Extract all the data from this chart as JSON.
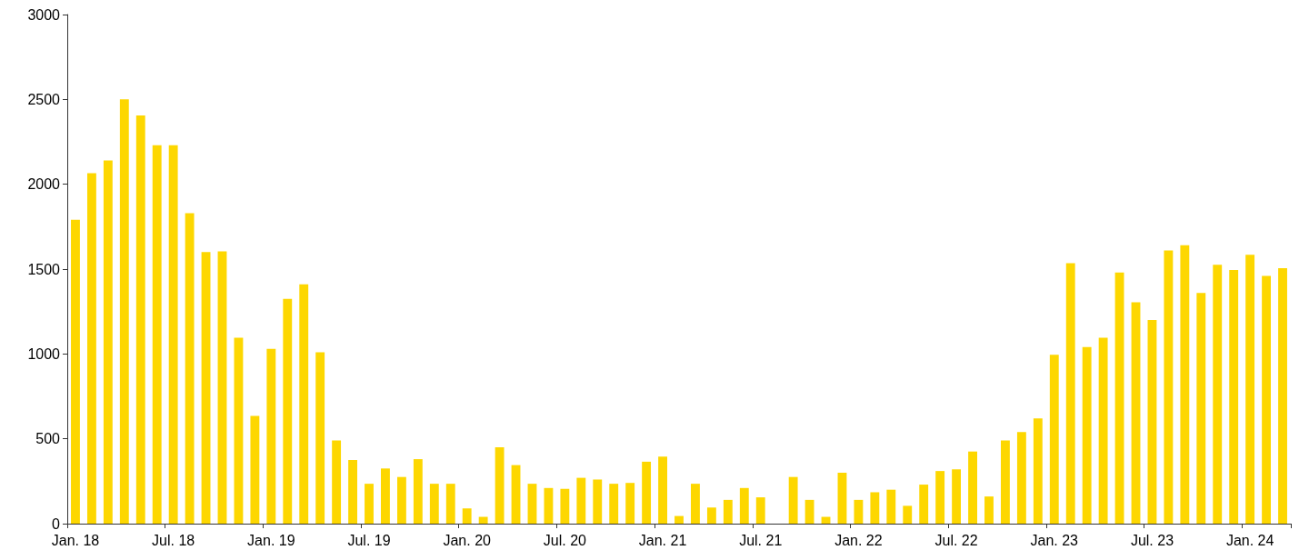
{
  "chart_data": {
    "type": "bar",
    "categories": [
      "Jan. 18",
      null,
      null,
      null,
      null,
      null,
      "Jul. 18",
      null,
      null,
      null,
      null,
      null,
      "Jan. 19",
      null,
      null,
      null,
      null,
      null,
      "Jul. 19",
      null,
      null,
      null,
      null,
      null,
      "Jan. 20",
      null,
      null,
      null,
      null,
      null,
      "Jul. 20",
      null,
      null,
      null,
      null,
      null,
      "Jan. 21",
      null,
      null,
      null,
      null,
      null,
      "Jul. 21",
      null,
      null,
      null,
      null,
      null,
      "Jan. 22",
      null,
      null,
      null,
      null,
      null,
      "Jul. 22",
      null,
      null,
      null,
      null,
      null,
      "Jan. 23",
      null,
      null,
      null,
      null,
      null,
      "Jul. 23",
      null,
      null,
      null,
      null,
      null,
      "Jan. 24",
      null,
      null
    ],
    "values": [
      1790,
      2065,
      2140,
      2500,
      2405,
      2230,
      2230,
      1830,
      1600,
      1605,
      1095,
      635,
      1030,
      1325,
      1410,
      1010,
      490,
      375,
      235,
      325,
      275,
      380,
      235,
      235,
      90,
      40,
      450,
      345,
      235,
      210,
      205,
      270,
      260,
      235,
      240,
      365,
      395,
      45,
      235,
      95,
      140,
      210,
      155,
      null,
      275,
      140,
      40,
      300,
      140,
      185,
      200,
      105,
      230,
      310,
      320,
      425,
      160,
      490,
      540,
      620,
      995,
      1535,
      1040,
      1095,
      1480,
      1305,
      1200,
      1610,
      1640,
      1360,
      1525,
      1495,
      1585,
      1460,
      1505
    ],
    "color": "#fdd700",
    "ylim": [
      0,
      3000
    ],
    "yticks": [
      0,
      500,
      1000,
      1500,
      2000,
      2500,
      3000
    ],
    "grid": false
  }
}
